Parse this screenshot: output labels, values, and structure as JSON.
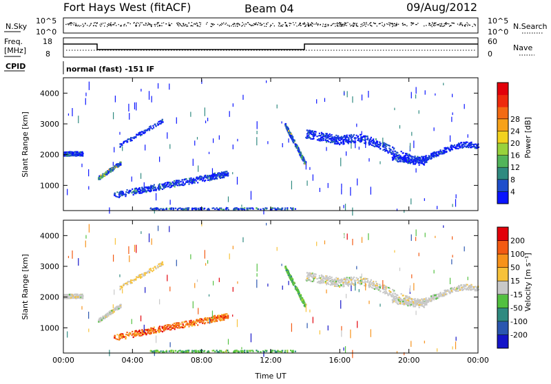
{
  "header": {
    "station": "Fort Hays West (fitACF)",
    "beam": "Beam 04",
    "date": "09/Aug/2012"
  },
  "summary": {
    "nsky_label": "N.Sky",
    "nsearch_label": "N.Search",
    "nsky_ticks": [
      "10^5",
      "10^0"
    ],
    "nsearch_ticks": [
      "10^5",
      "10^0"
    ],
    "freq_label_1": "Freq.",
    "freq_label_2": "[MHz]",
    "freq_ticks": [
      "18",
      "8"
    ],
    "nave_label": "Nave",
    "nave_ticks": [
      "60",
      "0"
    ],
    "cpid_label": "CPID",
    "cpid_text": "normal (fast) -151 IF"
  },
  "chart_data": [
    {
      "type": "heatmap",
      "panel": "power",
      "ylabel": "Slant Range [km]",
      "x_ticks": [
        "00:00",
        "04:00",
        "08:00",
        "12:00",
        "16:00",
        "20:00",
        "00:00"
      ],
      "y_ticks": [
        "1000",
        "2000",
        "3000",
        "4000"
      ],
      "ylim": [
        180,
        4500
      ],
      "xlim_hours": [
        0,
        24
      ],
      "colorbar_label": "Power [dB]",
      "colorbar_ticks": [
        "4",
        "8",
        "12",
        "16",
        "20",
        "24",
        "28"
      ],
      "colorbar_colors": [
        "#0a14ff",
        "#1e4ecb",
        "#2f8a80",
        "#52b45a",
        "#98d23c",
        "#f2d21e",
        "#f7a21a",
        "#f36a12",
        "#ee2a0c",
        "#e2000a"
      ]
    },
    {
      "type": "heatmap",
      "panel": "velocity",
      "ylabel": "Slant Range [km]",
      "xlabel": "Time UT",
      "x_ticks": [
        "00:00",
        "04:00",
        "08:00",
        "12:00",
        "16:00",
        "20:00",
        "00:00"
      ],
      "y_ticks": [
        "1000",
        "2000",
        "3000",
        "4000"
      ],
      "ylim": [
        180,
        4500
      ],
      "xlim_hours": [
        0,
        24
      ],
      "colorbar_label": "Velocity [m s⁻¹]",
      "colorbar_ticks": [
        "200",
        "100",
        "50",
        "15",
        "-15",
        "-50",
        "-100",
        "-200"
      ],
      "colorbar_colors": [
        "#1414c8",
        "#2a56b0",
        "#2f8a80",
        "#52c040",
        "#c8c8c8",
        "#f7c23a",
        "#f7921a",
        "#f35a12",
        "#e2000a"
      ]
    }
  ]
}
